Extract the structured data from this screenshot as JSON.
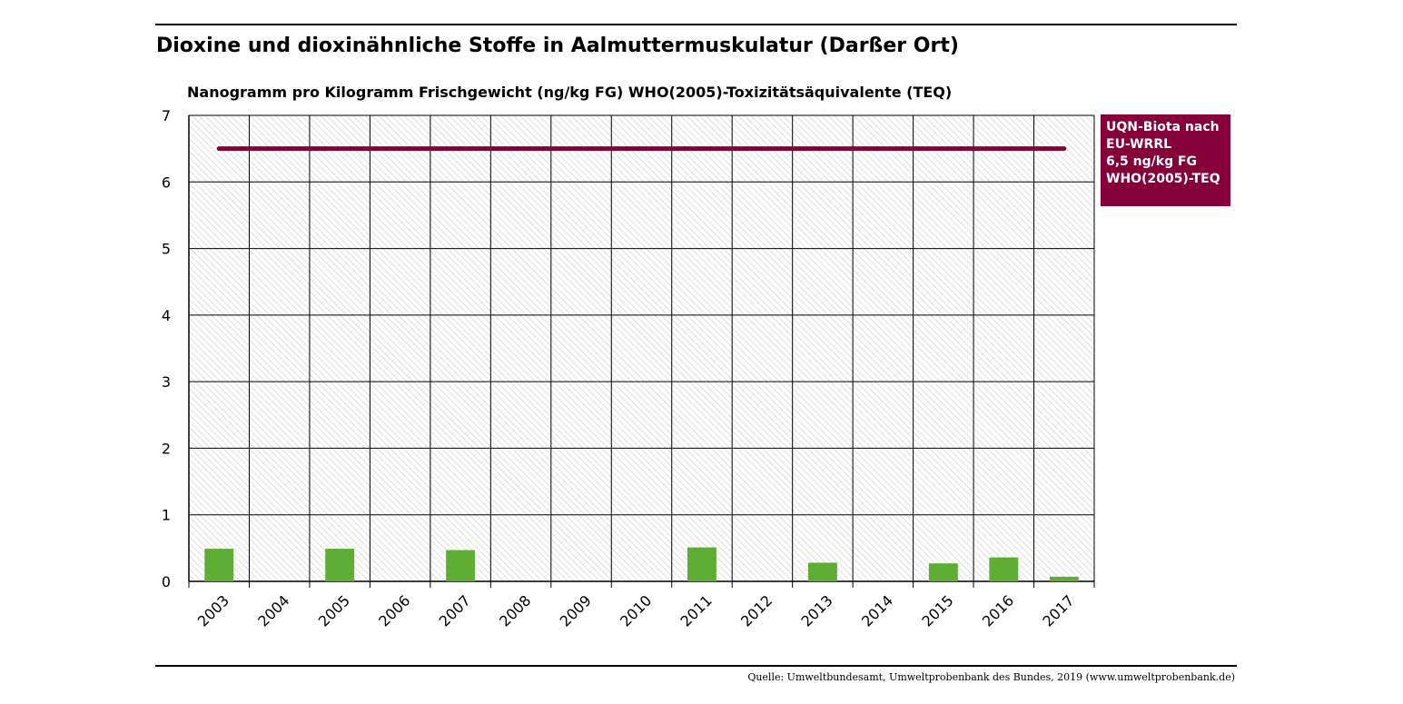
{
  "title": "Dioxine und dioxinähnliche Stoffe in Aalmuttermuskulatur (Darßer Ort)",
  "source": "Quelle: Umweltbundesamt, Umweltprobenbank des Bundes, 2019 (www.umweltprobenbank.de)",
  "chart_data": {
    "type": "bar",
    "title": "Dioxine und dioxinähnliche Stoffe in Aalmuttermuskulatur (Darßer Ort)",
    "ylabel": "Nanogramm pro Kilogramm Frischgewicht (ng/kg FG) WHO(2005)-Toxizitätsäquivalente (TEQ)",
    "xlabel": "",
    "categories": [
      "2003",
      "2004",
      "2005",
      "2006",
      "2007",
      "2008",
      "2009",
      "2010",
      "2011",
      "2012",
      "2013",
      "2014",
      "2015",
      "2016",
      "2017"
    ],
    "values": [
      0.49,
      null,
      0.49,
      null,
      0.47,
      null,
      null,
      null,
      0.51,
      null,
      0.28,
      null,
      0.27,
      0.36,
      0.07
    ],
    "ylim": [
      0,
      7
    ],
    "yticks": [
      0,
      1,
      2,
      3,
      4,
      5,
      6,
      7
    ],
    "grid": true,
    "bar_color": "#5fad35",
    "reference_line": {
      "value": 6.5,
      "color": "#85003b",
      "label_lines": [
        "UQN-Biota nach",
        "EU-WRRL",
        "6,5 ng/kg FG",
        "WHO(2005)-TEQ"
      ]
    },
    "legend_placement": "right"
  }
}
